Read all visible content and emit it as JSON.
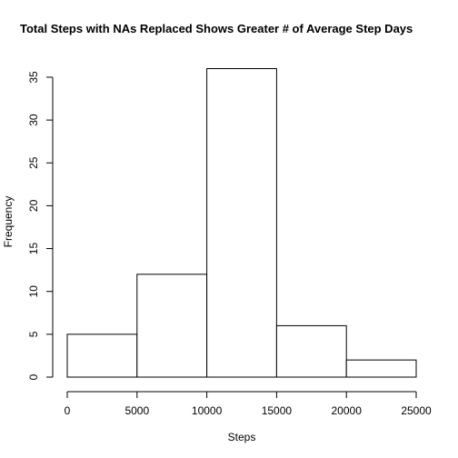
{
  "chart_data": {
    "type": "bar",
    "subtype": "histogram",
    "title": "Total Steps  with NAs Replaced Shows Greater # of Average Step Days",
    "xlabel": "Steps",
    "ylabel": "Frequency",
    "bins": [
      {
        "start": 0,
        "end": 5000,
        "count": 5
      },
      {
        "start": 5000,
        "end": 10000,
        "count": 12
      },
      {
        "start": 10000,
        "end": 15000,
        "count": 36
      },
      {
        "start": 15000,
        "end": 20000,
        "count": 6
      },
      {
        "start": 20000,
        "end": 25000,
        "count": 2
      }
    ],
    "xlim": [
      0,
      25000
    ],
    "ylim": [
      0,
      36
    ],
    "x_ticks": [
      0,
      5000,
      10000,
      15000,
      20000,
      25000
    ],
    "y_ticks": [
      0,
      5,
      10,
      15,
      20,
      25,
      30,
      35
    ],
    "grid": false,
    "bar_fill": "#ffffff",
    "bar_stroke": "#000000"
  }
}
